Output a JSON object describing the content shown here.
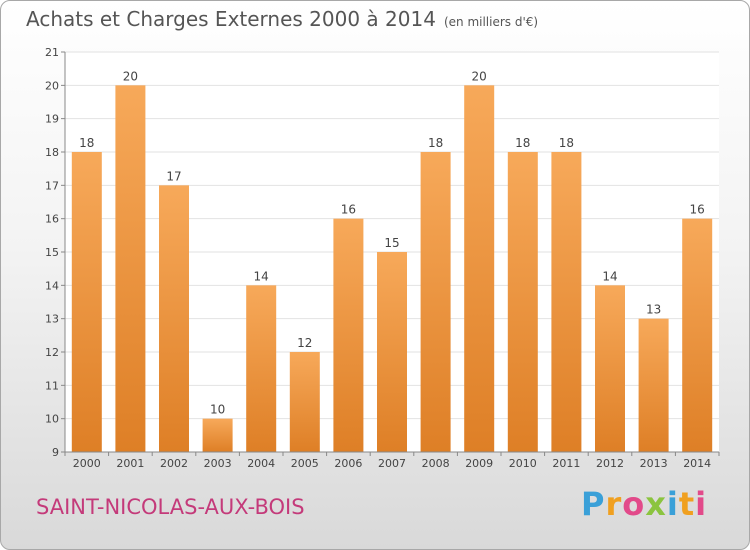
{
  "header": {
    "title": "Achats et Charges Externes 2000 à 2014",
    "subtitle": "(en milliers d'€)"
  },
  "footer": {
    "commune": "SAINT-NICOLAS-AUX-BOIS",
    "logo_letters": [
      "P",
      "r",
      "o",
      "x",
      "i",
      "t",
      "i"
    ],
    "logo_colors": [
      "#3aa0d8",
      "#f0a020",
      "#e24a8a",
      "#8bc43f",
      "#3aa0d8",
      "#f0a020",
      "#e24a8a"
    ]
  },
  "colors": {
    "bar_light": "#f7a95a",
    "bar_dark": "#de7f26",
    "grid": "#e2e2e2",
    "axis": "#888888",
    "text": "#444444",
    "commune": "#c43a7a"
  },
  "chart_data": {
    "type": "bar",
    "categories": [
      "2000",
      "2001",
      "2002",
      "2003",
      "2004",
      "2005",
      "2006",
      "2007",
      "2008",
      "2009",
      "2010",
      "2011",
      "2012",
      "2013",
      "2014"
    ],
    "values": [
      18,
      20,
      17,
      10,
      14,
      12,
      16,
      15,
      18,
      20,
      18,
      18,
      14,
      13,
      16
    ],
    "ylim": [
      9,
      21
    ],
    "yticks": [
      9,
      10,
      11,
      12,
      13,
      14,
      15,
      16,
      17,
      18,
      19,
      20,
      21
    ],
    "grid": true,
    "data_labels": true
  }
}
